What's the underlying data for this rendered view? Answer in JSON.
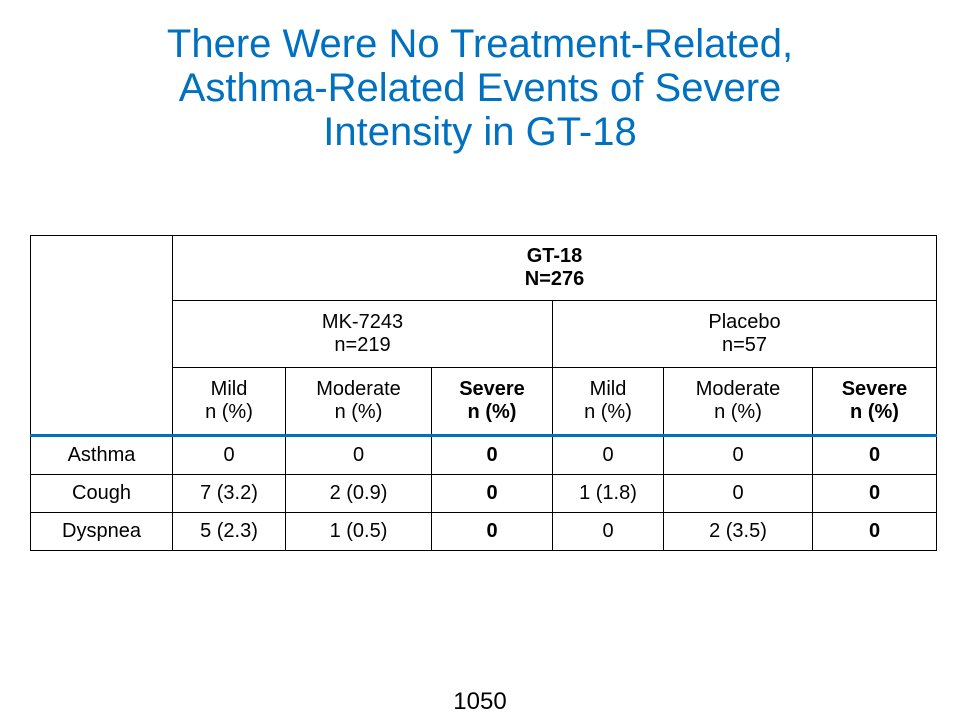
{
  "title": {
    "line1": "There Were No Treatment-Related,",
    "line2": "Asthma-Related Events of Severe",
    "line3": "Intensity in GT-18"
  },
  "table": {
    "study": {
      "name": "GT-18",
      "n": "N=276"
    },
    "groups": [
      {
        "name": "MK-7243",
        "n": "n=219"
      },
      {
        "name": "Placebo",
        "n": "n=57"
      }
    ],
    "columns": [
      {
        "label": "Mild",
        "unit": "n (%)"
      },
      {
        "label": "Moderate",
        "unit": "n (%)"
      },
      {
        "label": "Severe",
        "unit": "n (%)"
      },
      {
        "label": "Mild",
        "unit": "n (%)"
      },
      {
        "label": "Moderate",
        "unit": "n (%)"
      },
      {
        "label": "Severe",
        "unit": "n (%)"
      }
    ],
    "rows": [
      {
        "label": "Asthma",
        "values": [
          "0",
          "0",
          "0",
          "0",
          "0",
          "0"
        ]
      },
      {
        "label": "Cough",
        "values": [
          "7 (3.2)",
          "2 (0.9)",
          "0",
          "1 (1.8)",
          "0",
          "0"
        ]
      },
      {
        "label": "Dyspnea",
        "values": [
          "5 (2.3)",
          "1 (0.5)",
          "0",
          "0",
          "2 (3.5)",
          "0"
        ]
      }
    ]
  },
  "footer": {
    "page_number": "1050"
  },
  "colors": {
    "title": "#0070c0",
    "header_rule": "#0070c0"
  }
}
